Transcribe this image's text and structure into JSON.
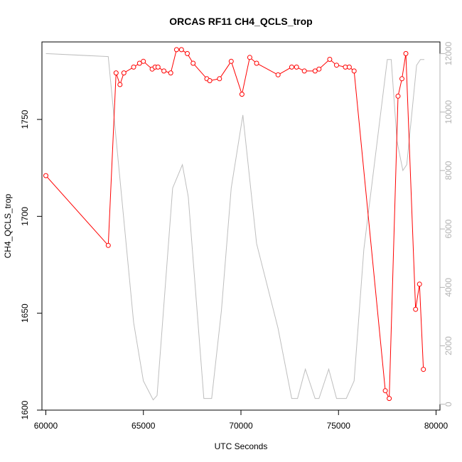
{
  "chart_data": {
    "type": "line",
    "title": "ORCAS RF11 CH4_QCLS_trop",
    "xlabel": "UTC Seconds",
    "ylabel": "CH4_QCLS_trop",
    "y2label": "",
    "xlim": [
      59800,
      80200
    ],
    "ylim": [
      1600,
      1790
    ],
    "y2lim": [
      -200,
      12400
    ],
    "x_ticks": [
      60000,
      65000,
      70000,
      75000,
      80000
    ],
    "y_ticks": [
      1600,
      1650,
      1700,
      1750
    ],
    "y2_ticks": [
      0,
      2000,
      4000,
      6000,
      8000,
      10000,
      12000
    ],
    "grid": false,
    "colors": {
      "primary": "#ff0000",
      "secondary": "#bebebe",
      "axis": "#000000",
      "axis2": "#b3b3b3"
    },
    "series": [
      {
        "axis": "left",
        "style": "line+points",
        "x": [
          60000,
          63200,
          63600,
          63800,
          64000,
          64500,
          64800,
          65000,
          65450,
          65600,
          65750,
          66050,
          66400,
          66700,
          66950,
          67250,
          67550,
          68250,
          68400,
          68900,
          69500,
          70050,
          70450,
          70800,
          71900,
          72600,
          72850,
          73250,
          73800,
          74000,
          74550,
          74900,
          75350,
          75550,
          75800,
          77400,
          77600,
          78050,
          78250,
          78450,
          78950,
          79150,
          79350
        ],
        "y": [
          1721,
          1685,
          1774,
          1768,
          1774,
          1777,
          1779,
          1780,
          1776,
          1777,
          1777,
          1775,
          1774,
          1786,
          1786,
          1784,
          1779,
          1771,
          1770,
          1771,
          1780,
          1763,
          1782,
          1779,
          1773,
          1777,
          1777,
          1775,
          1775,
          1776,
          1781,
          1778,
          1777,
          1777,
          1775,
          1610,
          1606,
          1762,
          1771,
          1784,
          1652,
          1665,
          1621
        ]
      },
      {
        "axis": "right",
        "style": "line",
        "x": [
          60000,
          63200,
          64000,
          64500,
          65000,
          65500,
          65700,
          66500,
          67000,
          67300,
          68100,
          68300,
          68500,
          69000,
          69500,
          70100,
          70800,
          71900,
          72600,
          72900,
          73300,
          73800,
          74000,
          74500,
          74900,
          75400,
          75800,
          76300,
          77500,
          77700,
          78000,
          78300,
          78500,
          79000,
          79200,
          79400
        ],
        "y": [
          12000,
          11900,
          6300,
          2800,
          800,
          150,
          300,
          7400,
          8200,
          7100,
          200,
          200,
          200,
          3200,
          7400,
          9900,
          5500,
          2600,
          200,
          200,
          1200,
          200,
          200,
          1200,
          200,
          200,
          800,
          5300,
          11800,
          11800,
          9000,
          8000,
          8200,
          11600,
          11800,
          11800
        ]
      }
    ]
  }
}
